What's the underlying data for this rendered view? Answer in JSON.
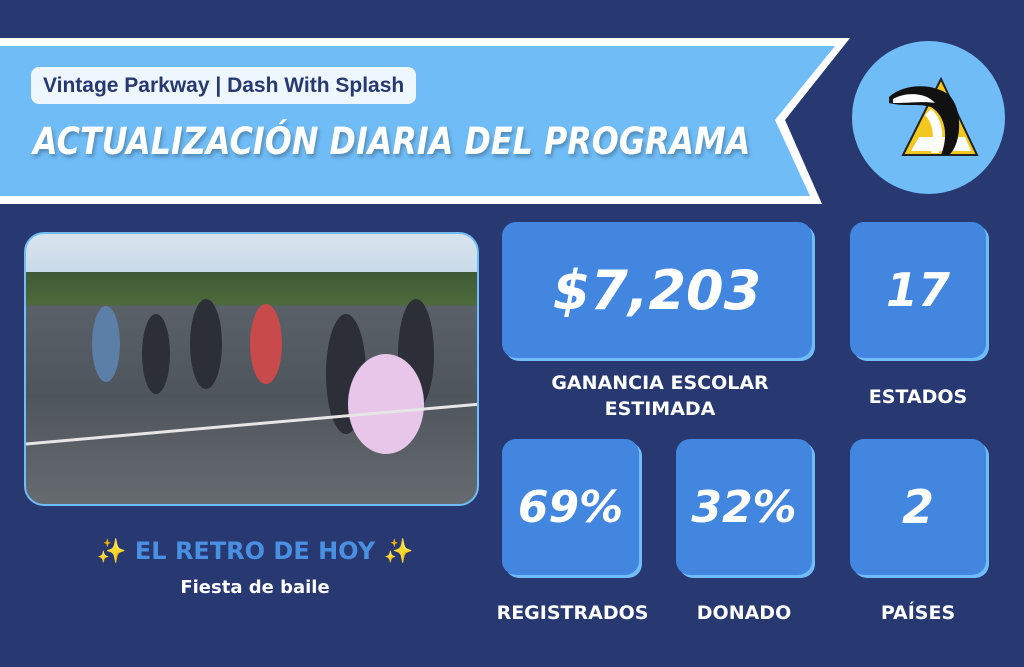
{
  "header": {
    "subtitle": "Vintage Parkway | Dash With Splash",
    "title": "ACTUALIZACIÓN DIARIA DEL PROGRAMA"
  },
  "logo": {
    "icon": "dolphin-logo"
  },
  "photo": {
    "description_icon": "photo"
  },
  "retro": {
    "heading": "✨ EL RETRO DE HOY ✨",
    "activity": "Fiesta de baile"
  },
  "stats": {
    "earnings": {
      "value": "$7,203",
      "label": "GANANCIA ESCOLAR ESTIMADA"
    },
    "states": {
      "value": "17",
      "label": "ESTADOS"
    },
    "registered": {
      "value": "69%",
      "label": "REGISTRADOS"
    },
    "donated": {
      "value": "32%",
      "label": "DONADO"
    },
    "countries": {
      "value": "2",
      "label": "PAÍSES"
    }
  },
  "colors": {
    "background": "#283870",
    "banner": "#6fbcf7",
    "card": "#4286e0",
    "accent": "#4a90e2"
  }
}
